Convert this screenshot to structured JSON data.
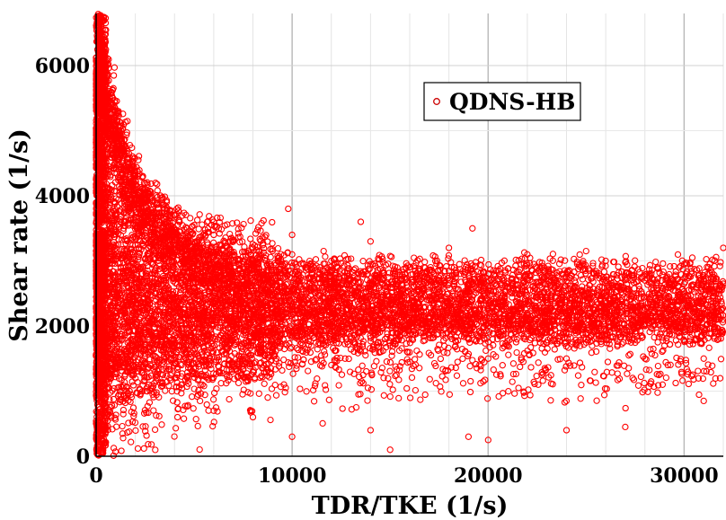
{
  "chart_data": {
    "type": "scatter",
    "xlabel": "TDR/TKE (1/s)",
    "ylabel": "Shear rate (1/s)",
    "xlim": [
      0,
      32000
    ],
    "ylim": [
      0,
      6800
    ],
    "x_ticks": [
      0,
      10000,
      20000,
      30000
    ],
    "y_ticks": [
      0,
      2000,
      4000,
      6000
    ],
    "x_tick_labels": [
      "0",
      "10000",
      "20000",
      "30000"
    ],
    "y_tick_labels": [
      "0",
      "2000",
      "4000",
      "6000"
    ],
    "grid": true,
    "legend_position": "top-right",
    "marker_color": "#ff0000",
    "marker_edge": "#b00000",
    "series": [
      {
        "name": "QDNS-HB",
        "points": [
          [
            200,
            6500
          ],
          [
            350,
            6200
          ],
          [
            500,
            5900
          ],
          [
            700,
            5500
          ],
          [
            900,
            5200
          ],
          [
            1100,
            4900
          ],
          [
            1400,
            4700
          ],
          [
            1700,
            4500
          ],
          [
            2000,
            4300
          ],
          [
            2500,
            4100
          ],
          [
            3000,
            3900
          ],
          [
            3500,
            3800
          ],
          [
            4000,
            3700
          ],
          [
            5000,
            3550
          ],
          [
            6000,
            3400
          ],
          [
            7000,
            3300
          ],
          [
            8000,
            3200
          ],
          [
            9000,
            3150
          ],
          [
            10000,
            3100
          ],
          [
            12000,
            3000
          ],
          [
            14000,
            2950
          ],
          [
            16000,
            2900
          ],
          [
            18000,
            2850
          ],
          [
            20000,
            2800
          ],
          [
            22000,
            2800
          ],
          [
            24000,
            2750
          ],
          [
            26000,
            2700
          ],
          [
            28000,
            2700
          ],
          [
            30000,
            2650
          ],
          [
            32000,
            2650
          ],
          [
            300,
            2000
          ],
          [
            600,
            2200
          ],
          [
            900,
            1800
          ],
          [
            1200,
            2400
          ],
          [
            1500,
            1600
          ],
          [
            2000,
            2100
          ],
          [
            2500,
            1700
          ],
          [
            3000,
            2500
          ],
          [
            3500,
            1900
          ],
          [
            4000,
            2300
          ],
          [
            5000,
            1800
          ],
          [
            6000,
            2400
          ],
          [
            7000,
            2000
          ],
          [
            8000,
            1700
          ],
          [
            9000,
            2200
          ],
          [
            10000,
            1900
          ],
          [
            11000,
            2300
          ],
          [
            12000,
            1800
          ],
          [
            13000,
            2100
          ],
          [
            14000,
            2000
          ],
          [
            15000,
            1700
          ],
          [
            16000,
            2200
          ],
          [
            17000,
            1900
          ],
          [
            18000,
            2300
          ],
          [
            19000,
            1800
          ],
          [
            20000,
            2000
          ],
          [
            21000,
            1700
          ],
          [
            22000,
            2200
          ],
          [
            23000,
            1900
          ],
          [
            24000,
            2100
          ],
          [
            25000,
            1800
          ],
          [
            26000,
            2300
          ],
          [
            27000,
            1900
          ],
          [
            28000,
            2000
          ],
          [
            29000,
            1700
          ],
          [
            30000,
            2200
          ],
          [
            31000,
            1900
          ],
          [
            31800,
            2100
          ],
          [
            4000,
            1200
          ],
          [
            8000,
            1300
          ],
          [
            12000,
            1400
          ],
          [
            16000,
            1450
          ],
          [
            20000,
            1500
          ],
          [
            24000,
            1500
          ],
          [
            28000,
            1500
          ],
          [
            31000,
            1500
          ],
          [
            6000,
            3600
          ],
          [
            10000,
            3400
          ],
          [
            14000,
            3300
          ],
          [
            18000,
            3200
          ],
          [
            22000,
            3100
          ],
          [
            26000,
            3000
          ],
          [
            30000,
            2950
          ],
          [
            10000,
            300
          ],
          [
            14000,
            400
          ],
          [
            15000,
            100
          ],
          [
            19000,
            300
          ],
          [
            20000,
            250
          ],
          [
            24000,
            400
          ],
          [
            27000,
            450
          ],
          [
            31000,
            850
          ],
          [
            8000,
            600
          ],
          [
            6000,
            700
          ],
          [
            9800,
            3800
          ],
          [
            13500,
            3600
          ],
          [
            19200,
            3500
          ],
          [
            25000,
            3150
          ],
          [
            32000,
            3200
          ]
        ]
      }
    ]
  }
}
